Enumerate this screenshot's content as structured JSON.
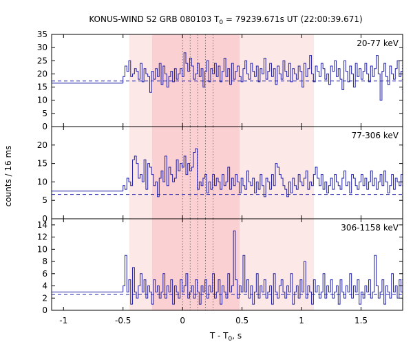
{
  "title": {
    "prefix": "KONUS-WIND S2 GRB 080103 T",
    "sub": "0",
    "suffix": " = 79239.671s UT (22:00:39.671)"
  },
  "ylabel": "counts / 16 ms",
  "xlabel": {
    "prefix": "T - T",
    "sub": "0",
    "suffix": ", s"
  },
  "chart_data": {
    "type": "line",
    "style": "step histogram, three stacked panels sharing the x axis",
    "xlim": [
      -1.1,
      1.85
    ],
    "x_ticks": [
      -1,
      -0.5,
      0,
      0.5,
      1,
      1.5
    ],
    "x_tick_labels": [
      "-1",
      "-0.5",
      "0",
      "0.5",
      "1",
      "1.5"
    ],
    "bin_width": 0.016,
    "data_start": -0.5,
    "shaded_regions": [
      {
        "x": [
          -0.448,
          1.104
        ],
        "color": "#fde8e8"
      },
      {
        "x": [
          -0.256,
          0.48
        ],
        "color": "#fbd0d3"
      }
    ],
    "vlines_dotted": [
      0,
      0.064,
      0.128,
      0.192,
      0.256
    ],
    "colors": {
      "line": "#1f1fa8",
      "axis": "#000000"
    },
    "panels": [
      {
        "energy_band": "20-77 keV",
        "ylim": [
          0,
          35
        ],
        "y_ticks": [
          0,
          5,
          10,
          15,
          20,
          25,
          30,
          35
        ],
        "background_step": 16.5,
        "background_fit": 17.3,
        "values": [
          19,
          23,
          21,
          25,
          19,
          20,
          22,
          21,
          18,
          24,
          17,
          22,
          20,
          19,
          13,
          21,
          18,
          22,
          19,
          24,
          16,
          23,
          20,
          15,
          19,
          21,
          17,
          22,
          18,
          20,
          22,
          19,
          28,
          24,
          21,
          26,
          23,
          18,
          20,
          24,
          19,
          22,
          15,
          21,
          25,
          17,
          22,
          20,
          24,
          19,
          23,
          17,
          21,
          26,
          19,
          22,
          16,
          24,
          18,
          21,
          23,
          19,
          17,
          22,
          25,
          20,
          18,
          24,
          21,
          19,
          23,
          17,
          22,
          20,
          26,
          18,
          21,
          24,
          19,
          22,
          16,
          23,
          20,
          18,
          25,
          21,
          19,
          24,
          17,
          22,
          20,
          18,
          23,
          21,
          15,
          24,
          19,
          22,
          27,
          20,
          17,
          23,
          21,
          19,
          24,
          22,
          18,
          20,
          16,
          23,
          21,
          25,
          19,
          22,
          18,
          14,
          25,
          21,
          17,
          23,
          20,
          15,
          24,
          19,
          22,
          18,
          21,
          24,
          20,
          17,
          23,
          19,
          22,
          27,
          20,
          10,
          21,
          24,
          19,
          16,
          23,
          20,
          18,
          22,
          25,
          19,
          21,
          17,
          13,
          24,
          20,
          22,
          18,
          21,
          23,
          19,
          22,
          16,
          20,
          24,
          21,
          18,
          23,
          20,
          15,
          22,
          19,
          21,
          14,
          24,
          20,
          17,
          22
        ]
      },
      {
        "energy_band": "77-306 keV",
        "ylim": [
          0,
          25
        ],
        "y_ticks": [
          0,
          5,
          10,
          15,
          20
        ],
        "background_step": 7.5,
        "background_fit": 6.6,
        "values": [
          9,
          8,
          11,
          10,
          9,
          16,
          17,
          15,
          11,
          12,
          10,
          16,
          8,
          15,
          14,
          12,
          9,
          10,
          6,
          11,
          13,
          10,
          17,
          9,
          14,
          12,
          10,
          11,
          16,
          13,
          15,
          14,
          17,
          12,
          15,
          13,
          14,
          18,
          19,
          8,
          10,
          9,
          11,
          12,
          7,
          10,
          8,
          12,
          9,
          11,
          10,
          8,
          12,
          9,
          10,
          14,
          8,
          11,
          9,
          12,
          10,
          7,
          11,
          9,
          8,
          13,
          10,
          9,
          11,
          7,
          10,
          8,
          12,
          9,
          6,
          11,
          10,
          8,
          12,
          9,
          15,
          14,
          12,
          11,
          9,
          8,
          6,
          10,
          7,
          11,
          9,
          8,
          12,
          10,
          9,
          11,
          13,
          8,
          10,
          9,
          12,
          14,
          11,
          9,
          12,
          8,
          10,
          7,
          9,
          11,
          8,
          12,
          10,
          9,
          8,
          11,
          13,
          9,
          10,
          7,
          12,
          11,
          9,
          8,
          10,
          12,
          9,
          11,
          8,
          10,
          13,
          9,
          11,
          8,
          10,
          12,
          9,
          13,
          10,
          7,
          9,
          12,
          8,
          11,
          10,
          9,
          12,
          8,
          10,
          14,
          9,
          11,
          7,
          10,
          12,
          8,
          9,
          11,
          10,
          6,
          12,
          9,
          8,
          11,
          10,
          9,
          7,
          12,
          10,
          8,
          11,
          9
        ]
      },
      {
        "energy_band": "306-1158 keV",
        "ylim": [
          0,
          15
        ],
        "y_ticks": [
          0,
          2,
          4,
          6,
          8,
          10,
          12,
          14
        ],
        "background_step": 3,
        "background_fit": 2.6,
        "values": [
          4,
          9,
          3,
          5,
          1,
          7,
          3,
          2,
          4,
          6,
          3,
          5,
          2,
          4,
          3,
          1,
          5,
          3,
          4,
          2,
          3,
          6,
          2,
          4,
          3,
          5,
          1,
          4,
          3,
          2,
          5,
          3,
          4,
          6,
          2,
          3,
          4,
          2,
          5,
          3,
          1,
          4,
          3,
          5,
          2,
          4,
          3,
          6,
          2,
          3,
          5,
          1,
          4,
          3,
          2,
          6,
          3,
          4,
          13,
          5,
          2,
          4,
          3,
          9,
          3,
          5,
          2,
          4,
          1,
          3,
          6,
          2,
          4,
          3,
          5,
          2,
          3,
          4,
          1,
          6,
          3,
          2,
          4,
          5,
          3,
          2,
          4,
          3,
          6,
          1,
          3,
          4,
          2,
          5,
          3,
          8,
          2,
          4,
          3,
          1,
          5,
          3,
          4,
          2,
          3,
          6,
          2,
          4,
          3,
          5,
          2,
          3,
          4,
          1,
          5,
          3,
          2,
          4,
          3,
          6,
          2,
          4,
          3,
          5,
          1,
          3,
          2,
          4,
          3,
          5,
          2,
          3,
          9,
          4,
          2,
          3,
          5,
          1,
          4,
          3,
          2,
          6,
          3,
          4,
          2,
          5,
          3,
          1,
          4,
          3,
          2,
          5,
          3,
          4,
          2,
          6,
          3,
          2,
          4,
          3,
          5,
          1,
          3,
          4,
          2,
          5,
          3,
          4,
          2,
          3,
          4,
          2
        ]
      }
    ]
  }
}
